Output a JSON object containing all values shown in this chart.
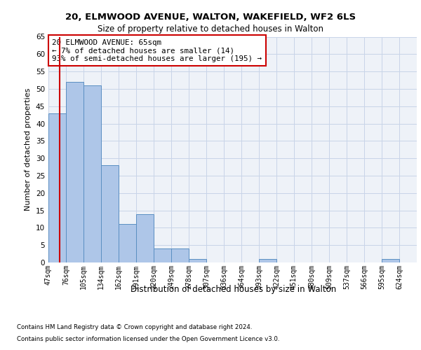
{
  "title1": "20, ELMWOOD AVENUE, WALTON, WAKEFIELD, WF2 6LS",
  "title2": "Size of property relative to detached houses in Walton",
  "xlabel": "Distribution of detached houses by size in Walton",
  "ylabel": "Number of detached properties",
  "bin_labels": [
    "47sqm",
    "76sqm",
    "105sqm",
    "134sqm",
    "162sqm",
    "191sqm",
    "220sqm",
    "249sqm",
    "278sqm",
    "307sqm",
    "336sqm",
    "364sqm",
    "393sqm",
    "422sqm",
    "451sqm",
    "480sqm",
    "509sqm",
    "537sqm",
    "566sqm",
    "595sqm",
    "624sqm"
  ],
  "bar_values": [
    43,
    52,
    51,
    28,
    11,
    14,
    4,
    4,
    1,
    0,
    0,
    0,
    1,
    0,
    0,
    0,
    0,
    0,
    0,
    1,
    0
  ],
  "bar_color": "#aec6e8",
  "bar_edge_color": "#5a8fc2",
  "annotation_box_text": "20 ELMWOOD AVENUE: 65sqm\n← 7% of detached houses are smaller (14)\n93% of semi-detached houses are larger (195) →",
  "annotation_box_edge_color": "#cc0000",
  "vertical_line_color": "#cc0000",
  "ylim": [
    0,
    65
  ],
  "yticks": [
    0,
    5,
    10,
    15,
    20,
    25,
    30,
    35,
    40,
    45,
    50,
    55,
    60,
    65
  ],
  "footer_line1": "Contains HM Land Registry data © Crown copyright and database right 2024.",
  "footer_line2": "Contains public sector information licensed under the Open Government Licence v3.0.",
  "bg_color": "#eef2f8",
  "grid_color": "#c8d4e8"
}
